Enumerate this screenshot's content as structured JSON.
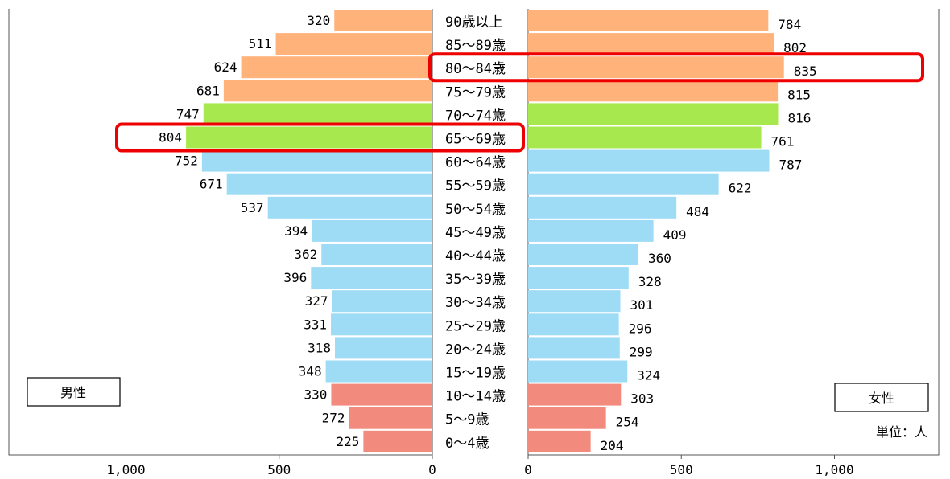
{
  "chart_data": {
    "type": "bar",
    "orientation": "horizontal-population-pyramid",
    "categories": [
      "90歳以上",
      "85～89歳",
      "80～84歳",
      "75～79歳",
      "70～74歳",
      "65～69歳",
      "60～64歳",
      "55～59歳",
      "50～54歳",
      "45～49歳",
      "40～44歳",
      "35～39歳",
      "30～34歳",
      "25～29歳",
      "20～24歳",
      "15～19歳",
      "10～14歳",
      "5～9歳",
      "0～4歳"
    ],
    "series": [
      {
        "name": "男性",
        "values": [
          320,
          511,
          624,
          681,
          747,
          804,
          752,
          671,
          537,
          394,
          362,
          396,
          327,
          331,
          318,
          348,
          330,
          272,
          225
        ]
      },
      {
        "name": "女性",
        "values": [
          784,
          802,
          835,
          815,
          816,
          761,
          787,
          622,
          484,
          409,
          360,
          328,
          301,
          296,
          299,
          324,
          303,
          254,
          204
        ]
      }
    ],
    "x_ticks_left": [
      "1,000",
      "500",
      "0"
    ],
    "x_ticks_right": [
      "0",
      "500",
      "1,000"
    ],
    "xlim": [
      0,
      1400
    ],
    "unit_label": "単位：人",
    "highlighted_categories": [
      "80～84歳",
      "65～69歳"
    ],
    "colors": {
      "age_75_plus": "#ffb27a",
      "age_65_74": "#a8e84f",
      "age_15_64": "#9edbf5",
      "age_0_14": "#f28b7e",
      "highlight": "#ee0000"
    }
  }
}
